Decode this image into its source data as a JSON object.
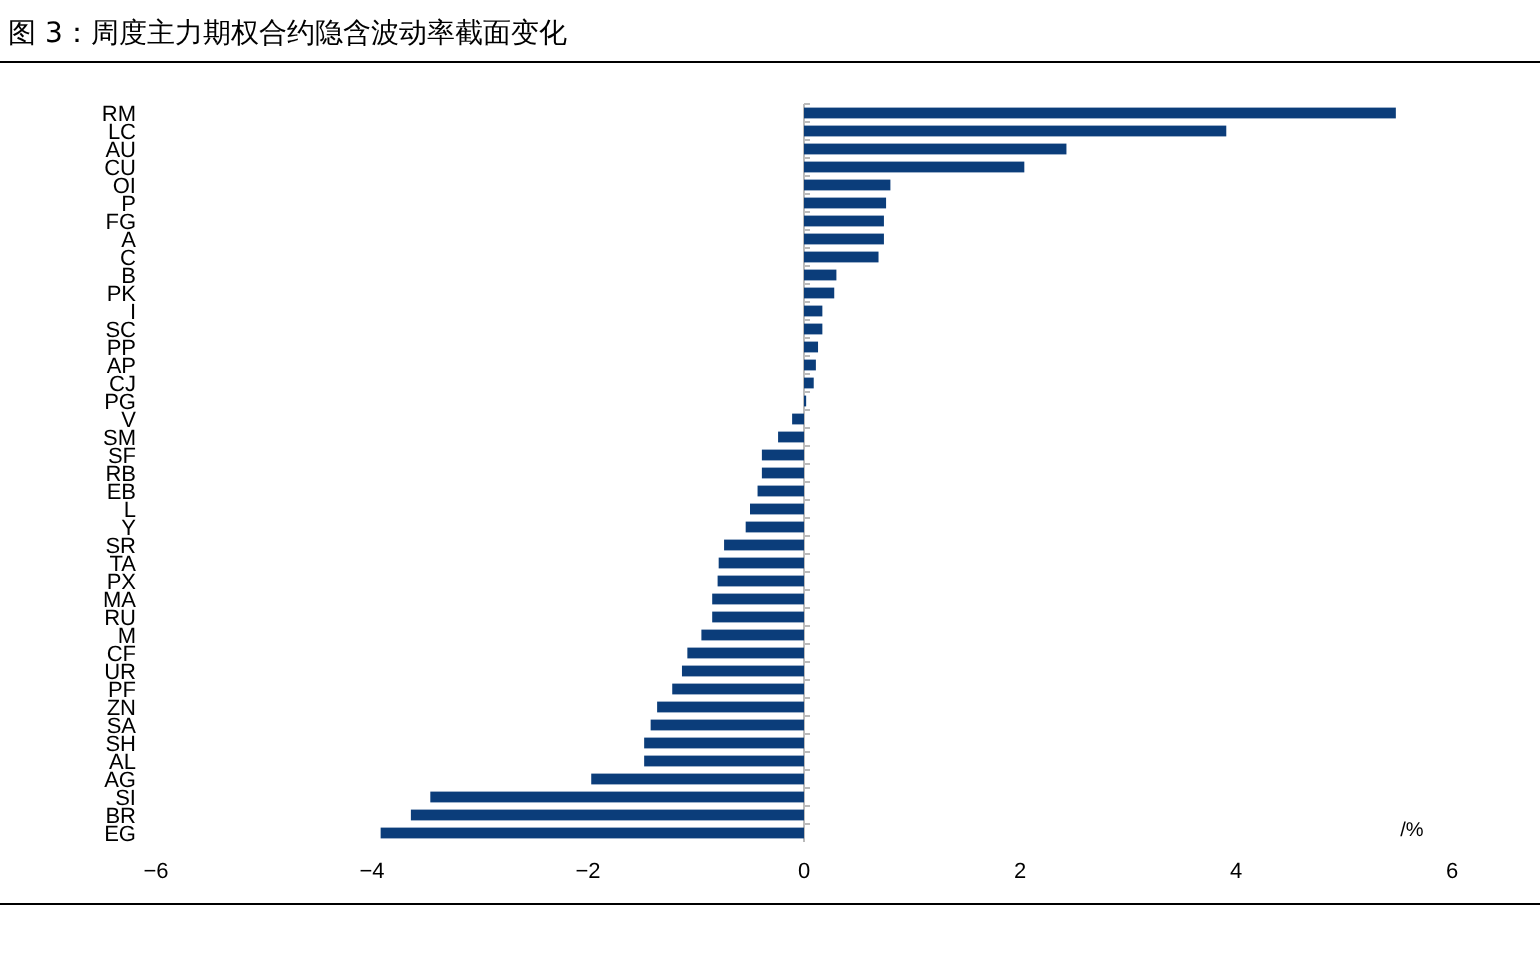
{
  "chart_data": {
    "type": "bar",
    "orientation": "horizontal",
    "title": "图 3：周度主力期权合约隐含波动率截面变化",
    "xlabel": "/%",
    "categories": [
      "RM",
      "LC",
      "AU",
      "CU",
      "OI",
      "P",
      "FG",
      "A",
      "C",
      "B",
      "PK",
      "I",
      "SC",
      "PP",
      "AP",
      "CJ",
      "PG",
      "V",
      "SM",
      "SF",
      "RB",
      "EB",
      "L",
      "Y",
      "SR",
      "TA",
      "PX",
      "MA",
      "RU",
      "M",
      "CF",
      "UR",
      "PF",
      "ZN",
      "SA",
      "SH",
      "AL",
      "AG",
      "SI",
      "BR",
      "EG"
    ],
    "values": [
      5.48,
      3.91,
      2.43,
      2.04,
      0.8,
      0.76,
      0.74,
      0.74,
      0.69,
      0.3,
      0.28,
      0.17,
      0.17,
      0.13,
      0.11,
      0.09,
      0.02,
      -0.11,
      -0.24,
      -0.39,
      -0.39,
      -0.43,
      -0.5,
      -0.54,
      -0.74,
      -0.79,
      -0.8,
      -0.85,
      -0.85,
      -0.95,
      -1.08,
      -1.13,
      -1.22,
      -1.36,
      -1.42,
      -1.48,
      -1.48,
      -1.97,
      -3.46,
      -3.64,
      -3.92
    ],
    "color": "#0b3d7a",
    "xlim": [
      -6,
      6
    ],
    "xticks": [
      -6,
      -4,
      -2,
      0,
      2,
      4,
      6
    ]
  }
}
